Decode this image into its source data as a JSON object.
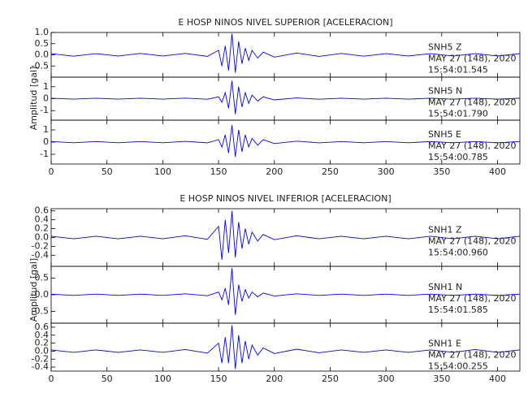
{
  "chart_data": [
    {
      "type": "line",
      "title": "E HOSP NINOS NIVEL SUPERIOR [ACELERACION]",
      "ylabel": "Amplitud [gal]",
      "xlim": [
        0,
        420
      ],
      "xticks": [
        0,
        50,
        100,
        150,
        200,
        250,
        300,
        350,
        400
      ],
      "x": [
        0,
        20,
        40,
        60,
        80,
        100,
        120,
        140,
        150,
        153,
        156,
        159,
        162,
        165,
        168,
        171,
        174,
        177,
        180,
        185,
        190,
        200,
        220,
        240,
        260,
        280,
        300,
        320,
        340,
        360,
        380,
        400,
        420
      ],
      "series": [
        {
          "name": "SNH5   Z",
          "date": "MAY 27 (148), 2020",
          "time": "15:54:01.545",
          "color": "#0000ff",
          "ylim": [
            -1,
            1
          ],
          "yticks": [
            {
              "value": -0.5,
              "label": "-0.5"
            },
            {
              "value": 0,
              "label": "0.0"
            },
            {
              "value": 0.5,
              "label": "0.5"
            },
            {
              "value": 1,
              "label": "1.0"
            }
          ],
          "values": [
            0.05,
            -0.06,
            0.05,
            -0.05,
            0.06,
            -0.05,
            0.06,
            -0.07,
            0.2,
            -0.5,
            0.4,
            -0.7,
            0.95,
            -0.8,
            0.6,
            -0.4,
            0.3,
            -0.25,
            0.2,
            -0.15,
            0.12,
            -0.1,
            0.08,
            -0.07,
            0.06,
            -0.06,
            0.05,
            -0.05,
            0.05,
            -0.05,
            0.05,
            -0.05,
            0.05
          ]
        },
        {
          "name": "SNH5   N",
          "date": "MAY 27 (148), 2020",
          "time": "15:54:01.790",
          "color": "#0000ff",
          "ylim": [
            -1.8,
            1.8
          ],
          "yticks": [
            -1,
            0,
            1
          ],
          "values": [
            0.04,
            -0.04,
            0.04,
            -0.04,
            0.04,
            -0.04,
            0.05,
            -0.05,
            0.15,
            -0.3,
            0.5,
            -0.8,
            1.5,
            -1.3,
            1.0,
            -0.7,
            0.5,
            -0.4,
            0.3,
            -0.2,
            0.15,
            -0.1,
            0.06,
            -0.05,
            0.04,
            -0.04,
            0.04,
            -0.04,
            0.04,
            -0.04,
            0.04,
            -0.04,
            0.04
          ]
        },
        {
          "name": "SNH5   E",
          "date": "MAY 27 (148), 2020",
          "time": "15:54:00.785",
          "color": "#0000ff",
          "ylim": [
            -1.8,
            1.8
          ],
          "yticks": [
            -1,
            0,
            1
          ],
          "values": [
            0.05,
            -0.05,
            0.05,
            -0.05,
            0.05,
            -0.05,
            0.06,
            -0.06,
            0.2,
            -0.4,
            0.6,
            -0.9,
            1.4,
            -1.2,
            1.0,
            -0.8,
            0.6,
            -0.4,
            0.3,
            -0.25,
            0.2,
            -0.12,
            0.08,
            -0.06,
            0.05,
            -0.05,
            0.05,
            -0.05,
            0.05,
            -0.05,
            0.05,
            -0.05,
            0.05
          ]
        }
      ]
    },
    {
      "type": "line",
      "title": "E HOSP NINOS NIVEL INFERIOR [ACELERACION]",
      "ylabel": "Amplitud [gal]",
      "xlim": [
        0,
        420
      ],
      "xticks": [
        0,
        50,
        100,
        150,
        200,
        250,
        300,
        350,
        400
      ],
      "x": [
        0,
        20,
        40,
        60,
        80,
        100,
        120,
        140,
        150,
        153,
        156,
        159,
        162,
        165,
        168,
        171,
        174,
        177,
        180,
        185,
        190,
        200,
        220,
        240,
        260,
        280,
        300,
        320,
        340,
        360,
        380,
        400,
        420
      ],
      "series": [
        {
          "name": "SNH1   Z",
          "date": "MAY 27 (148), 2020",
          "time": "15:54:00.960",
          "color": "#0000ff",
          "ylim": [
            -0.65,
            0.65
          ],
          "yticks": [
            {
              "value": -0.4,
              "label": "-0.4"
            },
            {
              "value": -0.2,
              "label": "-0.2"
            },
            {
              "value": 0,
              "label": "0.0"
            },
            {
              "value": 0.2,
              "label": "0.2"
            },
            {
              "value": 0.4,
              "label": "0.4"
            },
            {
              "value": 0.6,
              "label": "0.6"
            }
          ],
          "values": [
            0.03,
            -0.03,
            0.03,
            -0.03,
            0.03,
            -0.03,
            0.04,
            -0.04,
            0.25,
            -0.5,
            0.4,
            -0.35,
            0.6,
            -0.45,
            0.35,
            -0.25,
            0.2,
            -0.15,
            0.12,
            -0.08,
            0.07,
            -0.05,
            0.04,
            -0.03,
            0.03,
            -0.03,
            0.03,
            -0.03,
            0.03,
            -0.03,
            0.03,
            -0.03,
            0.03
          ]
        },
        {
          "name": "SNH1   N",
          "date": "MAY 27 (148), 2020",
          "time": "15:54:01.585",
          "color": "#0000ff",
          "ylim": [
            -0.85,
            0.85
          ],
          "yticks": [
            {
              "value": -0.5,
              "label": "-0.5"
            },
            {
              "value": 0,
              "label": "0.0"
            },
            {
              "value": 0.5,
              "label": "0.5"
            }
          ],
          "values": [
            0.02,
            -0.02,
            0.02,
            -0.02,
            0.02,
            -0.02,
            0.03,
            -0.03,
            0.08,
            -0.15,
            0.2,
            -0.3,
            0.8,
            -0.6,
            0.3,
            -0.2,
            0.15,
            -0.1,
            0.08,
            -0.06,
            0.05,
            -0.04,
            0.03,
            -0.02,
            0.02,
            -0.02,
            0.02,
            -0.02,
            0.02,
            -0.02,
            0.02,
            -0.02,
            0.02
          ]
        },
        {
          "name": "SNH1   E",
          "date": "MAY 27 (148), 2020",
          "time": "15:54:00.255",
          "color": "#0000ff",
          "ylim": [
            -0.5,
            0.7
          ],
          "yticks": [
            {
              "value": -0.4,
              "label": "-0.4"
            },
            {
              "value": -0.2,
              "label": "-0.2"
            },
            {
              "value": 0,
              "label": "0.0"
            },
            {
              "value": 0.2,
              "label": "0.2"
            },
            {
              "value": 0.4,
              "label": "0.4"
            },
            {
              "value": 0.6,
              "label": "0.6"
            }
          ],
          "values": [
            0.03,
            -0.03,
            0.03,
            -0.03,
            0.03,
            -0.03,
            0.04,
            -0.05,
            0.2,
            -0.3,
            0.35,
            -0.3,
            0.65,
            -0.45,
            0.4,
            -0.3,
            0.25,
            -0.2,
            0.15,
            -0.1,
            0.08,
            -0.06,
            0.05,
            -0.04,
            0.03,
            -0.03,
            0.03,
            -0.03,
            0.03,
            -0.03,
            0.04,
            -0.03,
            0.03
          ]
        }
      ]
    }
  ]
}
